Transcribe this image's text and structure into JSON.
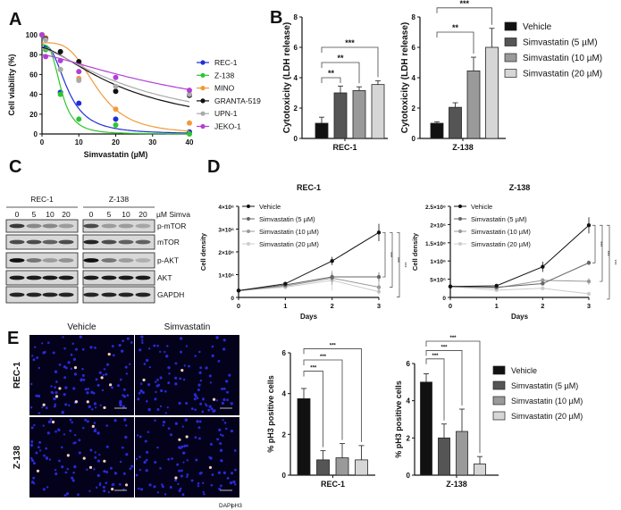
{
  "panel_labels": {
    "A": "A",
    "B": "B",
    "C": "C",
    "D": "D",
    "E": "E"
  },
  "legend_bar": {
    "labels": [
      "Vehicle",
      "Simvastatin (5 µM)",
      "Simvastatin (10 µM)",
      "Simvastatin (20 µM)"
    ],
    "colors": [
      "#111111",
      "#555555",
      "#9a9a9a",
      "#d6d6d6"
    ]
  },
  "chart_data": [
    {
      "id": "A",
      "type": "scatter",
      "xlabel": "Simvastatin (µM)",
      "ylabel": "Cell viability (%)",
      "xlim": [
        0,
        40
      ],
      "ylim": [
        0,
        100
      ],
      "xticks": [
        "0",
        "10",
        "20",
        "30",
        "40"
      ],
      "yticks": [
        "0",
        "20",
        "40",
        "60",
        "80",
        "100"
      ],
      "series": [
        {
          "name": "REC-1",
          "color": "#1f2fd6",
          "x": [
            0,
            1,
            5,
            10,
            20,
            40
          ],
          "y": [
            100,
            87,
            42,
            31,
            15,
            2
          ],
          "fit": {
            "top": 90,
            "ic50": 7,
            "hill": 2.6
          }
        },
        {
          "name": "Z-138",
          "color": "#2fc52f",
          "x": [
            0,
            1,
            5,
            10,
            20,
            40
          ],
          "y": [
            100,
            85,
            40,
            15,
            9,
            0
          ],
          "fit": {
            "top": 90,
            "ic50": 5.2,
            "hill": 3.2
          }
        },
        {
          "name": "MINO",
          "color": "#f29a3a",
          "x": [
            0,
            1,
            5,
            10,
            20,
            40
          ],
          "y": [
            100,
            97,
            65,
            56,
            25,
            11
          ],
          "fit": {
            "top": 92,
            "ic50": 15,
            "hill": 3.5
          }
        },
        {
          "name": "GRANTA-519",
          "color": "#111111",
          "x": [
            0,
            1,
            5,
            10,
            20,
            40
          ],
          "y": [
            100,
            96,
            83,
            73,
            43,
            39
          ],
          "fit": {
            "top": 87,
            "ic50": 24,
            "hill": 1.5
          }
        },
        {
          "name": "UPN-1",
          "color": "#aaaaaa",
          "x": [
            0,
            1,
            5,
            10,
            20,
            40
          ],
          "y": [
            100,
            95,
            65,
            54,
            48,
            40
          ],
          "fit": {
            "top": 86,
            "ic50": 28,
            "hill": 1.4
          }
        },
        {
          "name": "JEKO-1",
          "color": "#b23ed6",
          "x": [
            0,
            1,
            5,
            10,
            20,
            40
          ],
          "y": [
            100,
            78,
            74,
            63,
            57,
            44
          ],
          "fit": {
            "top": 80,
            "ic50": 48,
            "hill": 1.3
          }
        }
      ]
    },
    {
      "id": "B1",
      "type": "bar",
      "xlabel": "REC-1",
      "ylabel": "Cytotoxicity (LDH release)",
      "ylim": [
        0,
        8
      ],
      "yticks": [
        "0",
        "2",
        "4",
        "6",
        "8"
      ],
      "values": [
        1.0,
        3.0,
        3.15,
        3.55
      ],
      "errors": [
        0.4,
        0.45,
        0.25,
        0.25
      ],
      "brackets": [
        {
          "from": 0,
          "to": 1,
          "level": 4.0,
          "label": "**"
        },
        {
          "from": 0,
          "to": 2,
          "level": 5.0,
          "label": "**"
        },
        {
          "from": 0,
          "to": 3,
          "level": 6.0,
          "label": "***"
        }
      ]
    },
    {
      "id": "B2",
      "type": "bar",
      "xlabel": "Z-138",
      "ylabel": "Cytotoxicity (LDH release)",
      "ylim": [
        0,
        8
      ],
      "yticks": [
        "0",
        "2",
        "4",
        "6",
        "8"
      ],
      "values": [
        1.0,
        2.05,
        4.45,
        6.0
      ],
      "errors": [
        0.1,
        0.3,
        0.9,
        1.25
      ],
      "brackets": [
        {
          "from": 0,
          "to": 2,
          "level": 7.0,
          "label": "**"
        },
        {
          "from": 0,
          "to": 3,
          "level": 8.6,
          "label": "***"
        }
      ]
    },
    {
      "id": "D1",
      "type": "line",
      "title": "REC-1",
      "xlabel": "Days",
      "ylabel": "Cell density",
      "xlim": [
        0,
        3
      ],
      "ylim": [
        0,
        4000000
      ],
      "xticks": [
        "0",
        "1",
        "2",
        "3"
      ],
      "yticks": [
        "0",
        "1×10⁶",
        "2×10⁶",
        "3×10⁶",
        "4×10⁶"
      ],
      "series": [
        {
          "name": "Vehicle",
          "color": "#111111",
          "x": [
            0,
            1,
            2,
            3
          ],
          "y": [
            300000,
            600000,
            1600000,
            2850000
          ],
          "err": [
            20000,
            60000,
            180000,
            380000
          ]
        },
        {
          "name": "Simvastatin (5 µM)",
          "color": "#666666",
          "x": [
            0,
            1,
            2,
            3
          ],
          "y": [
            300000,
            550000,
            900000,
            900000
          ],
          "err": [
            20000,
            50000,
            150000,
            200000
          ]
        },
        {
          "name": "Simvastatin (10 µM)",
          "color": "#999999",
          "x": [
            0,
            1,
            2,
            3
          ],
          "y": [
            300000,
            500000,
            850000,
            450000
          ],
          "err": [
            20000,
            50000,
            300000,
            250000
          ]
        },
        {
          "name": "Simvastatin (20 µM)",
          "color": "#cccccc",
          "x": [
            0,
            1,
            2,
            3
          ],
          "y": [
            300000,
            450000,
            750000,
            250000
          ],
          "err": [
            20000,
            80000,
            450000,
            150000
          ]
        }
      ],
      "significance": [
        "***",
        "***",
        "***"
      ]
    },
    {
      "id": "D2",
      "type": "line",
      "title": "Z-138",
      "xlabel": "Days",
      "ylabel": "Cell density",
      "xlim": [
        0,
        3
      ],
      "ylim": [
        0,
        2500000
      ],
      "xticks": [
        "0",
        "1",
        "2",
        "3"
      ],
      "yticks": [
        "0",
        "5×10⁵",
        "1×10⁶",
        "1.5×10⁶",
        "2×10⁶",
        "2.5×10⁶"
      ],
      "series": [
        {
          "name": "Vehicle",
          "color": "#111111",
          "x": [
            0,
            1,
            2,
            3
          ],
          "y": [
            300000,
            320000,
            840000,
            1980000
          ],
          "err": [
            10000,
            30000,
            140000,
            220000
          ]
        },
        {
          "name": "Simvastatin (5 µM)",
          "color": "#666666",
          "x": [
            0,
            1,
            2,
            3
          ],
          "y": [
            300000,
            280000,
            380000,
            950000
          ],
          "err": [
            10000,
            30000,
            50000,
            60000
          ]
        },
        {
          "name": "Simvastatin (10 µM)",
          "color": "#999999",
          "x": [
            0,
            1,
            2,
            3
          ],
          "y": [
            300000,
            260000,
            470000,
            440000
          ],
          "err": [
            10000,
            30000,
            60000,
            90000
          ]
        },
        {
          "name": "Simvastatin (20 µM)",
          "color": "#cccccc",
          "x": [
            0,
            1,
            2,
            3
          ],
          "y": [
            300000,
            200000,
            250000,
            100000
          ],
          "err": [
            10000,
            30000,
            40000,
            20000
          ]
        }
      ],
      "significance": [
        "***",
        "***",
        "***"
      ]
    },
    {
      "id": "E1",
      "type": "bar",
      "xlabel": "REC-1",
      "ylabel": "% pH3 positive cells",
      "ylim": [
        0,
        6
      ],
      "yticks": [
        "0",
        "2",
        "4",
        "6"
      ],
      "values": [
        3.75,
        0.75,
        0.85,
        0.75
      ],
      "errors": [
        0.5,
        0.45,
        0.7,
        0.7
      ],
      "brackets": [
        {
          "from": 0,
          "to": 1,
          "level": 5.1,
          "label": "***"
        },
        {
          "from": 0,
          "to": 2,
          "level": 5.65,
          "label": "***"
        },
        {
          "from": 0,
          "to": 3,
          "level": 6.2,
          "label": "***"
        }
      ]
    },
    {
      "id": "E2",
      "type": "bar",
      "xlabel": "Z-138",
      "ylabel": "% pH3 positive cells",
      "ylim": [
        0,
        6
      ],
      "yticks": [
        "0",
        "2",
        "4",
        "6"
      ],
      "values": [
        5.0,
        2.0,
        2.35,
        0.6
      ],
      "errors": [
        0.45,
        0.75,
        1.2,
        0.4
      ],
      "brackets": [
        {
          "from": 0,
          "to": 1,
          "level": 6.25,
          "label": "***"
        },
        {
          "from": 0,
          "to": 2,
          "level": 6.7,
          "label": "***"
        },
        {
          "from": 0,
          "to": 3,
          "level": 7.2,
          "label": "***"
        }
      ]
    }
  ],
  "western_blot": {
    "cell_lines": [
      "REC-1",
      "Z-138"
    ],
    "lanes": [
      "0",
      "5",
      "10",
      "20"
    ],
    "unit_label": "µM Simva",
    "proteins": [
      {
        "name": "p-mTOR",
        "intensity": [
          [
            0.8,
            0.4,
            0.4,
            0.3
          ],
          [
            0.7,
            0.3,
            0.3,
            0.25
          ]
        ]
      },
      {
        "name": "mTOR",
        "intensity": [
          [
            0.7,
            0.7,
            0.6,
            0.7
          ],
          [
            0.9,
            0.7,
            0.6,
            0.6
          ]
        ]
      },
      {
        "name": "p-AKT",
        "intensity": [
          [
            1,
            0.5,
            0.3,
            0.35
          ],
          [
            1,
            0.5,
            0.3,
            0.2
          ]
        ]
      },
      {
        "name": "AKT",
        "intensity": [
          [
            0.95,
            0.95,
            0.95,
            0.95
          ],
          [
            0.95,
            0.95,
            0.95,
            0.95
          ]
        ]
      },
      {
        "name": "GAPDH",
        "intensity": [
          [
            0.9,
            0.9,
            0.9,
            0.9
          ],
          [
            0.9,
            0.9,
            0.9,
            0.9
          ]
        ]
      }
    ]
  },
  "microscopy": {
    "columns": [
      "Vehicle",
      "Simvastatin"
    ],
    "rows": [
      "REC-1",
      "Z-138"
    ],
    "stain_dapi": "DAPI",
    "stain_ph3": "pH3",
    "dapi_color": "#2a2ad8",
    "ph3_color": "#f7cdbd"
  }
}
